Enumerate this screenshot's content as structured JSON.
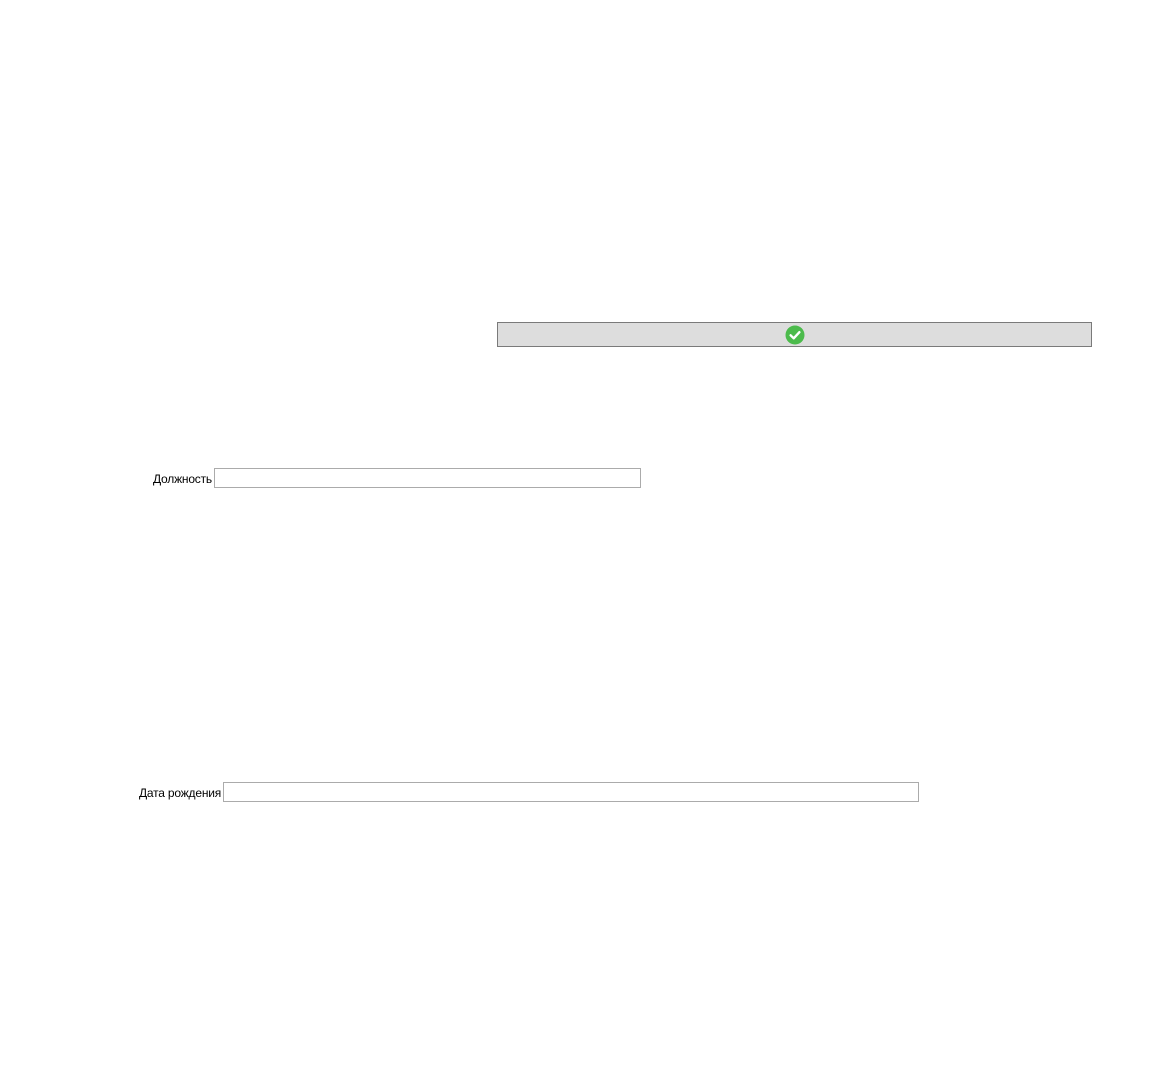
{
  "confirm_button": {
    "icon": "checkmark-circle-icon",
    "icon_color": "#4cbb4c",
    "background_color": "#dddddd"
  },
  "fields": {
    "position": {
      "label": "Должность",
      "value": ""
    },
    "birth_date": {
      "label": "Дата рождения",
      "value": ""
    }
  }
}
